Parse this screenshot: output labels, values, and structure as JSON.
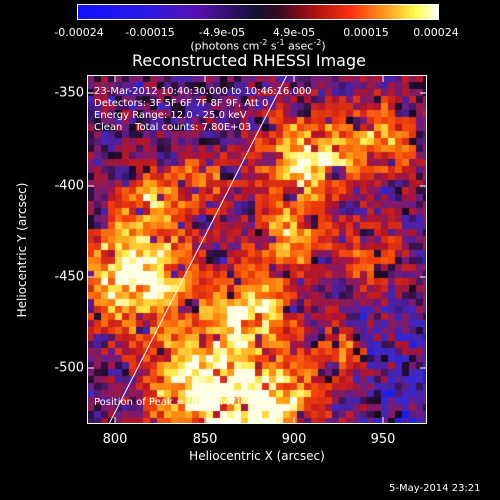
{
  "colorbar": {
    "labels": [
      "-0.00024",
      "-0.00015",
      "-4.9e-05",
      "4.9e-05",
      "0.00015",
      "0.00024"
    ],
    "units_main": "(photons cm",
    "units_e1": "-2",
    "units_mid1": " s",
    "units_e2": "-1",
    "units_mid2": " asec",
    "units_e3": "-2",
    "units_end": ")"
  },
  "title": "Reconstructed RHESSI Image",
  "info": {
    "time_range": "23-Mar-2012 10:40:30.000 to 10:46:16.000",
    "detectors": "Detectors: 3F 5F 6F 7F 8F 9F, Att 0",
    "energy": "Energy Range: 12.0 - 25.0 keV",
    "method": "Clean    Total counts: 7.80E+03",
    "peak": "Position of Peak = [813,-447]"
  },
  "axes": {
    "xlabel": "Heliocentric X (arcsec)",
    "ylabel": "Heliocentric Y (arcsec)",
    "xticks": [
      "800",
      "850",
      "900",
      "950"
    ],
    "yticks": [
      "-350",
      "-400",
      "-450",
      "-500"
    ],
    "xlim": [
      780,
      975
    ],
    "ylim": [
      -532,
      -333
    ]
  },
  "datestamp": "5-May-2014 23:21",
  "colors": {
    "neg_deep": "#1010ff",
    "purple": "#5a1a8c",
    "red": "#e01010",
    "yellow": "#ffff30",
    "white": "#ffffff"
  }
}
